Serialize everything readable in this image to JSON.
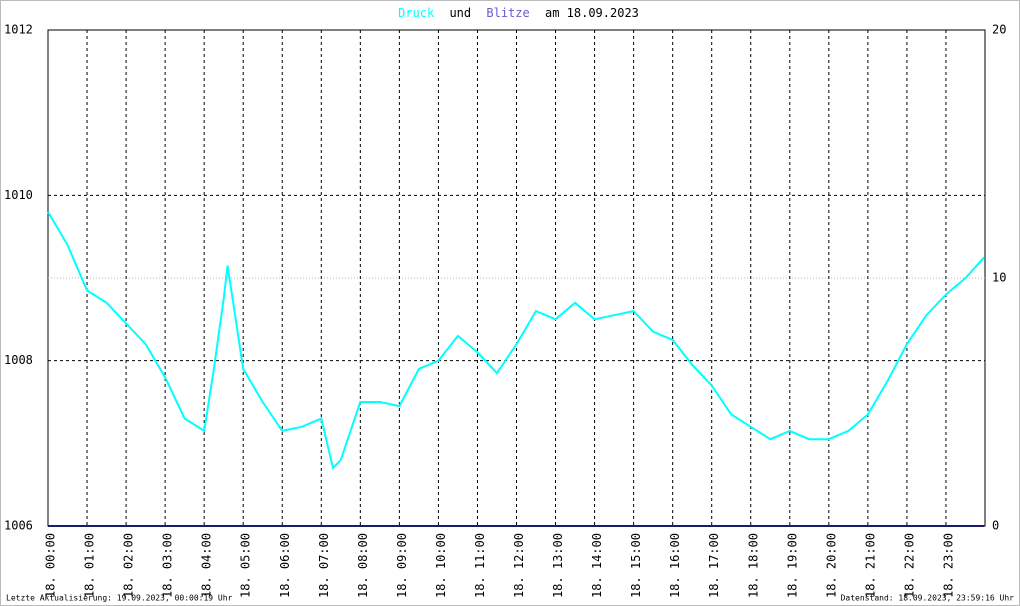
{
  "chart_data": {
    "type": "line",
    "title_connector": "und",
    "title_date": "am 18.09.2023",
    "footer_left": "Letzte Aktualisierung: 19.09.2023, 00:00:19 Uhr",
    "footer_right": "Datenstand: 18.09.2023, 23:59:16 Uhr",
    "xlim": [
      0,
      24
    ],
    "xticks": [
      {
        "value": 0,
        "label": "18. 00:00"
      },
      {
        "value": 1,
        "label": "18. 01:00"
      },
      {
        "value": 2,
        "label": "18. 02:00"
      },
      {
        "value": 3,
        "label": "18. 03:00"
      },
      {
        "value": 4,
        "label": "18. 04:00"
      },
      {
        "value": 5,
        "label": "18. 05:00"
      },
      {
        "value": 6,
        "label": "18. 06:00"
      },
      {
        "value": 7,
        "label": "18. 07:00"
      },
      {
        "value": 8,
        "label": "18. 08:00"
      },
      {
        "value": 9,
        "label": "18. 09:00"
      },
      {
        "value": 10,
        "label": "18. 10:00"
      },
      {
        "value": 11,
        "label": "18. 11:00"
      },
      {
        "value": 12,
        "label": "18. 12:00"
      },
      {
        "value": 13,
        "label": "18. 13:00"
      },
      {
        "value": 14,
        "label": "18. 14:00"
      },
      {
        "value": 15,
        "label": "18. 15:00"
      },
      {
        "value": 16,
        "label": "18. 16:00"
      },
      {
        "value": 17,
        "label": "18. 17:00"
      },
      {
        "value": 18,
        "label": "18. 18:00"
      },
      {
        "value": 19,
        "label": "18. 19:00"
      },
      {
        "value": 20,
        "label": "18. 20:00"
      },
      {
        "value": 21,
        "label": "18. 21:00"
      },
      {
        "value": 22,
        "label": "18. 22:00"
      },
      {
        "value": 23,
        "label": "18. 23:00"
      }
    ],
    "ylim": [
      1006,
      1012
    ],
    "yticks": [
      1006,
      1008,
      1010,
      1012
    ],
    "y2lim": [
      0,
      20
    ],
    "y2ticks": [
      0,
      10,
      20
    ],
    "grid": true,
    "series": [
      {
        "name": "Druck",
        "color": "#00ffff",
        "x": [
          0,
          0.5,
          1,
          1.5,
          2,
          2.5,
          3,
          3.5,
          4,
          4.25,
          4.5,
          4.6,
          5,
          5.5,
          6,
          6.5,
          7,
          7.3,
          7.5,
          8,
          8.5,
          9,
          9.5,
          10,
          10.5,
          11,
          11.5,
          12,
          12.5,
          13,
          13.5,
          14,
          14.5,
          15,
          15.5,
          16,
          16.5,
          17,
          17.5,
          18,
          18.5,
          19,
          19.5,
          20,
          20.5,
          21,
          21.5,
          22,
          22.5,
          23,
          23.5,
          23.98
        ],
        "values": [
          1009.8,
          1009.4,
          1008.85,
          1008.7,
          1008.45,
          1008.2,
          1007.8,
          1007.3,
          1007.15,
          1007.9,
          1008.75,
          1009.15,
          1007.9,
          1007.5,
          1007.15,
          1007.2,
          1007.3,
          1006.7,
          1006.8,
          1007.5,
          1007.5,
          1007.45,
          1007.9,
          1008.0,
          1008.3,
          1008.1,
          1007.85,
          1008.2,
          1008.6,
          1008.5,
          1008.7,
          1008.5,
          1008.55,
          1008.6,
          1008.35,
          1008.25,
          1007.95,
          1007.7,
          1007.35,
          1007.2,
          1007.05,
          1007.15,
          1007.05,
          1007.05,
          1007.15,
          1007.35,
          1007.75,
          1008.2,
          1008.55,
          1008.8,
          1009.0,
          1009.25
        ]
      },
      {
        "name": "Blitze",
        "color": "#1a1a6e",
        "axis": "y2",
        "title_color": "#6a5acd",
        "x": [
          0,
          23.98
        ],
        "values": [
          0,
          0
        ]
      }
    ]
  }
}
